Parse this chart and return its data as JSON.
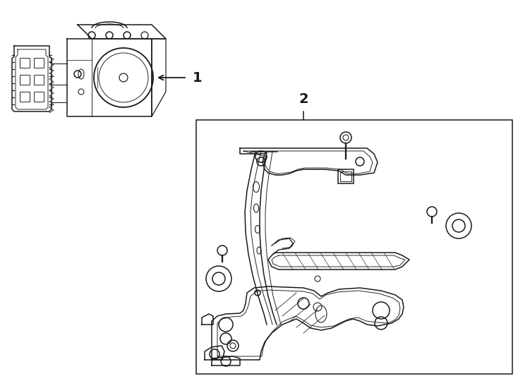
{
  "background_color": "#ffffff",
  "line_color": "#1a1a1a",
  "label1": "1",
  "label2": "2",
  "fig_width": 7.34,
  "fig_height": 5.4,
  "dpi": 100
}
